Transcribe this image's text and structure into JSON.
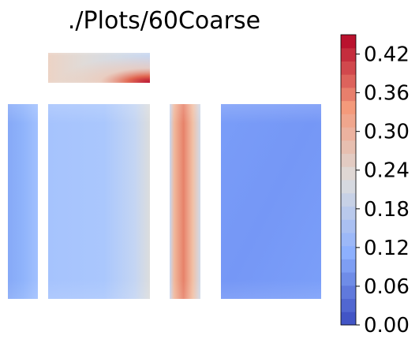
{
  "chart_data": {
    "type": "heatmap",
    "title": "./Plots/60Coarse",
    "colormap": "coolwarm",
    "colorbar": {
      "vmin": 0.0,
      "vmax": 0.45,
      "levels": 22,
      "ticks": [
        0.0,
        0.06,
        0.12,
        0.18,
        0.24,
        0.3,
        0.36,
        0.42
      ],
      "tick_labels": [
        "0.00",
        "0.06",
        "0.12",
        "0.18",
        "0.24",
        "0.30",
        "0.36",
        "0.42"
      ],
      "placement": "right"
    },
    "panels": [
      {
        "id": "top-panel",
        "range": [
          0.14,
          0.45
        ],
        "pattern": "hot-corner"
      },
      {
        "id": "left-strip",
        "range": [
          0.1,
          0.16
        ],
        "pattern": "edge-light"
      },
      {
        "id": "center-left",
        "range": [
          0.13,
          0.24
        ],
        "pattern": "right-warm"
      },
      {
        "id": "center-right-strip",
        "range": [
          0.15,
          0.35
        ],
        "pattern": "left-hot"
      },
      {
        "id": "right-panel",
        "range": [
          0.08,
          0.13
        ],
        "pattern": "cool"
      }
    ],
    "grid": false
  }
}
